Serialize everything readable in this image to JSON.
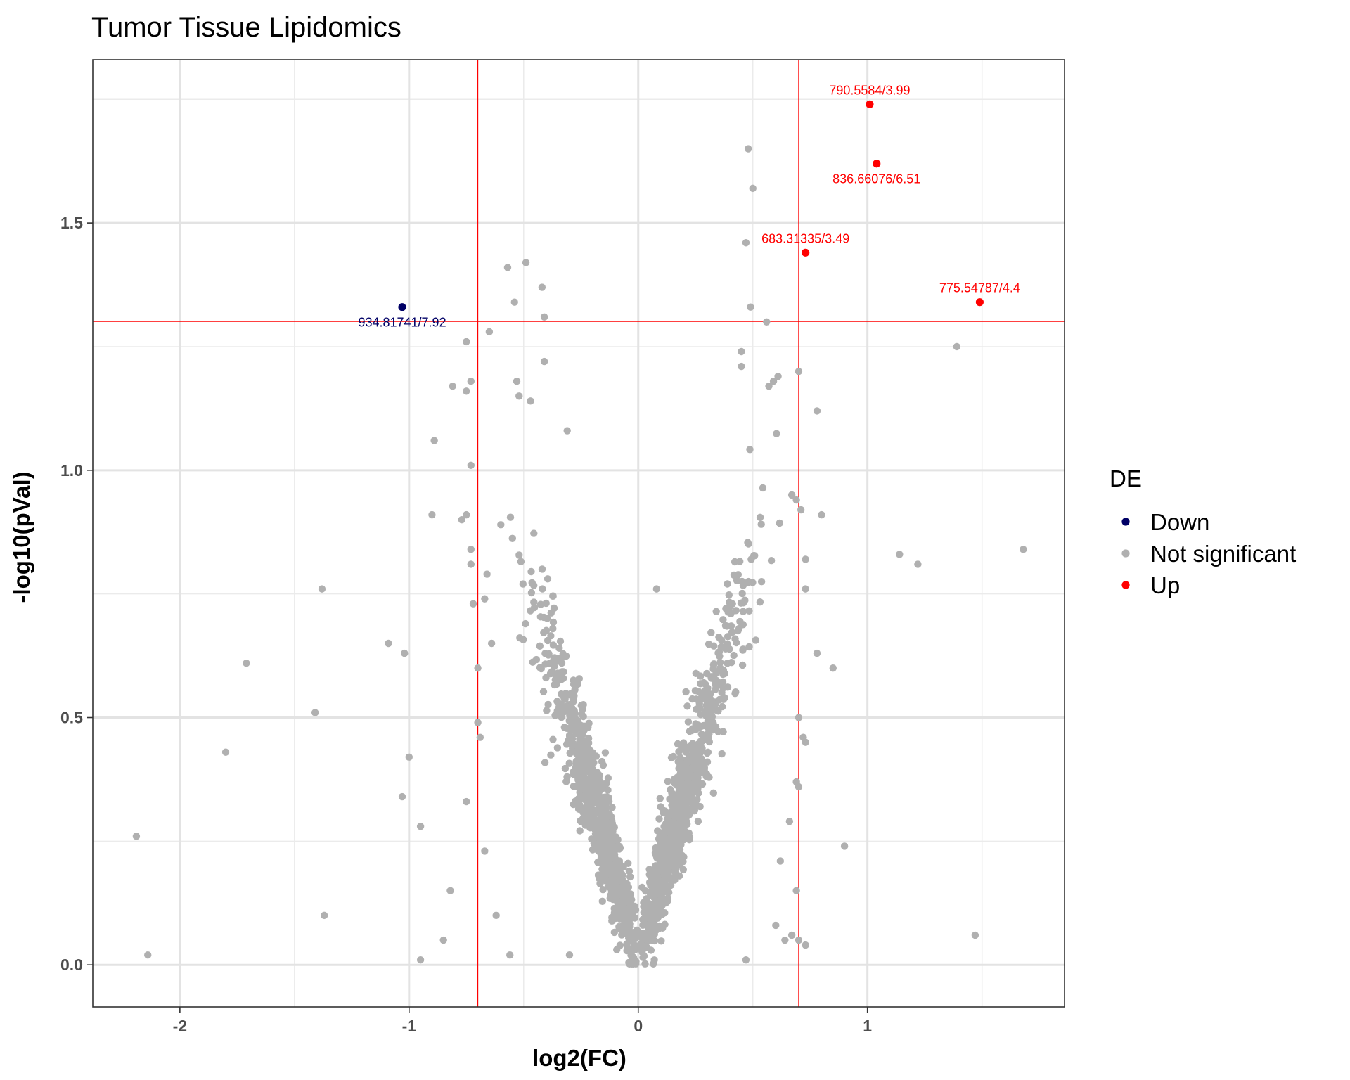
{
  "chart_data": {
    "type": "scatter",
    "title": "Tumor Tissue Lipidomics",
    "xlabel": "log2(FC)",
    "ylabel": "-log10(pVal)",
    "xlim": [
      -2.38,
      1.86
    ],
    "ylim": [
      -0.085,
      1.83
    ],
    "x_ticks": [
      -2,
      -1,
      0,
      1
    ],
    "x_tick_labels": [
      "-2",
      "-1",
      "0",
      "1"
    ],
    "y_ticks": [
      0.0,
      0.5,
      1.0,
      1.5
    ],
    "y_tick_labels": [
      "0.0",
      "0.5",
      "1.0",
      "1.5"
    ],
    "grid": true,
    "thresholds": {
      "x": [
        -0.7,
        0.7
      ],
      "y": [
        1.301
      ],
      "color": "#ff0000"
    },
    "legend": {
      "title": "DE",
      "position": "right",
      "entries": [
        {
          "name": "Down",
          "color": "#000066"
        },
        {
          "name": "Not significant",
          "color": "#b0b0b0"
        },
        {
          "name": "Up",
          "color": "#ff0000"
        }
      ]
    },
    "highlighted": [
      {
        "x": 1.01,
        "y": 1.74,
        "label": "790.5584/3.99",
        "group": "Up",
        "label_pos": "above"
      },
      {
        "x": 1.04,
        "y": 1.62,
        "label": "836.66076/6.51",
        "group": "Up",
        "label_pos": "below"
      },
      {
        "x": 0.73,
        "y": 1.44,
        "label": "683.31335/3.49",
        "group": "Up",
        "label_pos": "above"
      },
      {
        "x": 1.49,
        "y": 1.34,
        "label": "775.54787/4.4",
        "group": "Up",
        "label_pos": "above"
      },
      {
        "x": -1.03,
        "y": 1.33,
        "label": "934.81741/7.92",
        "group": "Down",
        "label_pos": "below"
      }
    ],
    "outliers": [
      [
        -2.19,
        0.26
      ],
      [
        -2.14,
        0.02
      ],
      [
        -1.8,
        0.43
      ],
      [
        -1.71,
        0.61
      ],
      [
        -1.41,
        0.51
      ],
      [
        -1.38,
        0.76
      ],
      [
        -1.37,
        0.1
      ],
      [
        -1.09,
        0.65
      ],
      [
        -1.03,
        0.34
      ],
      [
        -1.02,
        0.63
      ],
      [
        -1.0,
        0.42
      ],
      [
        -0.95,
        0.28
      ],
      [
        -0.95,
        0.01
      ],
      [
        -0.89,
        1.06
      ],
      [
        -0.9,
        0.91
      ],
      [
        -0.85,
        0.05
      ],
      [
        -0.82,
        0.15
      ],
      [
        -0.81,
        1.17
      ],
      [
        -0.77,
        0.9
      ],
      [
        -0.75,
        0.91
      ],
      [
        -0.75,
        0.33
      ],
      [
        -0.75,
        1.26
      ],
      [
        -0.75,
        1.16
      ],
      [
        -0.73,
        1.18
      ],
      [
        -0.73,
        1.01
      ],
      [
        -0.73,
        0.84
      ],
      [
        -0.73,
        0.81
      ],
      [
        -0.72,
        0.73
      ],
      [
        -0.7,
        0.6
      ],
      [
        -0.7,
        0.49
      ],
      [
        -0.69,
        0.46
      ],
      [
        -0.67,
        0.74
      ],
      [
        -0.67,
        0.23
      ],
      [
        -0.65,
        1.28
      ],
      [
        -0.66,
        0.79
      ],
      [
        -0.64,
        0.65
      ],
      [
        -0.62,
        0.1
      ],
      [
        -0.57,
        1.41
      ],
      [
        -0.54,
        1.34
      ],
      [
        -0.53,
        1.18
      ],
      [
        -0.52,
        1.15
      ],
      [
        -0.49,
        1.42
      ],
      [
        -0.47,
        1.14
      ],
      [
        -0.42,
        1.37
      ],
      [
        -0.41,
        1.31
      ],
      [
        -0.41,
        1.22
      ],
      [
        -0.31,
        1.08
      ],
      [
        -0.56,
        0.02
      ],
      [
        -0.3,
        0.02
      ],
      [
        0.08,
        0.76
      ],
      [
        0.45,
        1.24
      ],
      [
        0.45,
        1.21
      ],
      [
        0.47,
        1.46
      ],
      [
        0.48,
        1.65
      ],
      [
        0.49,
        1.33
      ],
      [
        0.5,
        1.57
      ],
      [
        0.56,
        1.3
      ],
      [
        0.57,
        1.17
      ],
      [
        0.59,
        1.18
      ],
      [
        0.61,
        1.19
      ],
      [
        0.7,
        1.2
      ],
      [
        0.71,
        0.92
      ],
      [
        0.78,
        1.12
      ],
      [
        0.8,
        0.91
      ],
      [
        0.73,
        0.82
      ],
      [
        0.73,
        0.76
      ],
      [
        0.78,
        0.63
      ],
      [
        0.85,
        0.6
      ],
      [
        0.72,
        0.46
      ],
      [
        0.73,
        0.45
      ],
      [
        0.7,
        0.5
      ],
      [
        0.69,
        0.37
      ],
      [
        0.7,
        0.36
      ],
      [
        0.69,
        0.15
      ],
      [
        0.73,
        0.04
      ],
      [
        0.9,
        0.24
      ],
      [
        1.14,
        0.83
      ],
      [
        1.22,
        0.81
      ],
      [
        1.39,
        1.25
      ],
      [
        1.47,
        0.06
      ],
      [
        1.68,
        0.84
      ],
      [
        0.67,
        0.95
      ],
      [
        0.69,
        0.94
      ],
      [
        0.66,
        0.29
      ],
      [
        0.67,
        0.06
      ],
      [
        0.64,
        0.05
      ],
      [
        0.6,
        0.08
      ],
      [
        0.7,
        0.05
      ],
      [
        0.47,
        0.01
      ],
      [
        0.62,
        0.21
      ]
    ],
    "cloud": {
      "n": 1700,
      "description_free": true,
      "color": "#b0b0b0"
    }
  }
}
